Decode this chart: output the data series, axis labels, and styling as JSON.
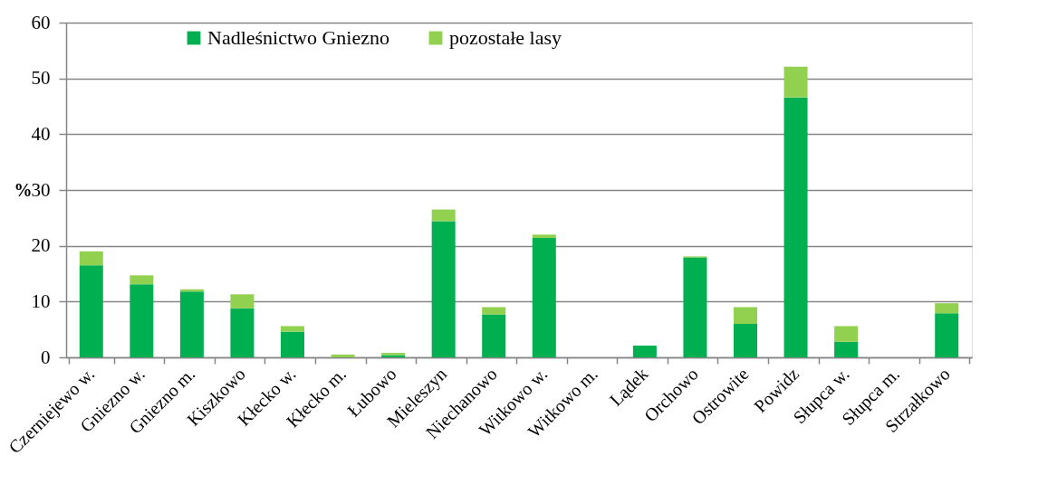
{
  "chart_data": {
    "type": "bar",
    "stacked": true,
    "ylabel": "%",
    "categories": [
      "Czerniejewo w.",
      "Gniezno w.",
      "Gniezno m.",
      "Kiszkowo",
      "Kłecko w.",
      "Kłecko m.",
      "Łubowo",
      "Mieleszyn",
      "Niechanowo",
      "Witkowo w.",
      "Witkowo m.",
      "Lądek",
      "Orchowo",
      "Ostrowite",
      "Powidz",
      "Słupca w.",
      "Słupca m.",
      "Strzałkowo"
    ],
    "series": [
      {
        "name": "Nadleśnictwo Gniezno",
        "color": "#00b050",
        "values": [
          16.5,
          13.1,
          11.8,
          8.8,
          4.6,
          0,
          0.4,
          24.4,
          7.7,
          21.4,
          0,
          2.1,
          17.9,
          6.0,
          46.6,
          2.8,
          0,
          7.9
        ]
      },
      {
        "name": "pozostałe lasy",
        "color": "#92d050",
        "values": [
          2.5,
          1.6,
          0.4,
          2.5,
          1.0,
          0.5,
          0.4,
          2.1,
          1.3,
          0.6,
          0,
          0,
          0.2,
          3.0,
          5.5,
          2.8,
          0,
          1.8
        ]
      }
    ],
    "ylim": [
      0,
      60
    ],
    "yticks": [
      0,
      10,
      20,
      30,
      40,
      50,
      60
    ],
    "grid": "y",
    "legend": "top"
  }
}
